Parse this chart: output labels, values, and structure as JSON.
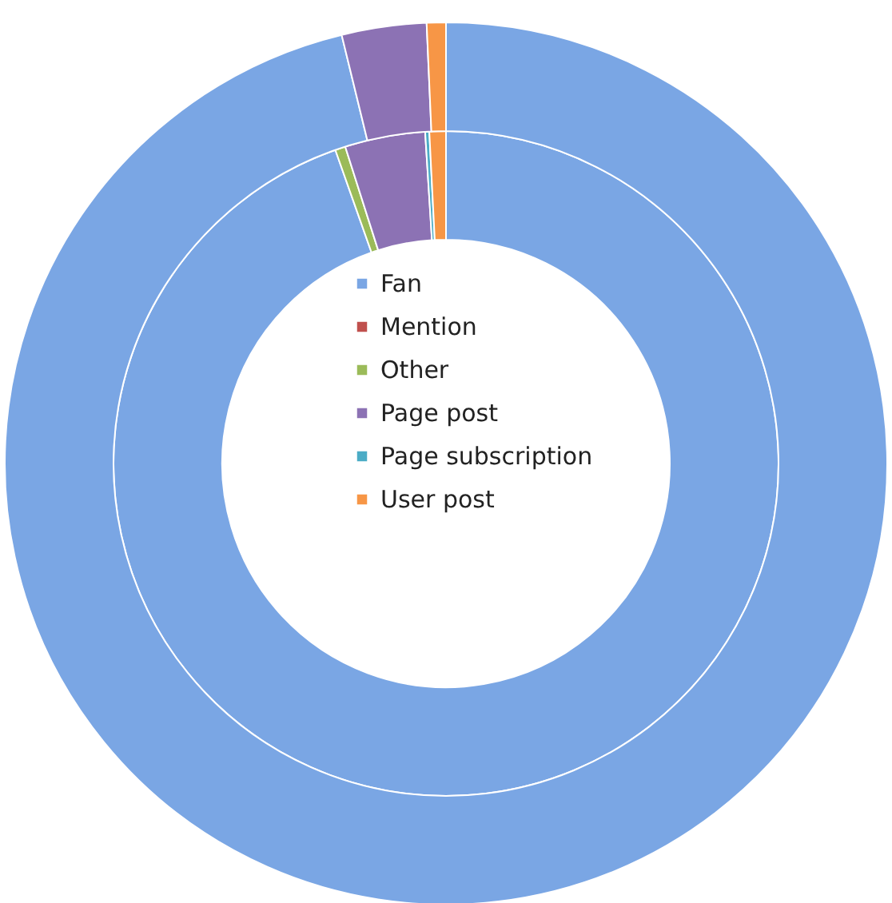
{
  "chart_data": {
    "type": "donut",
    "categories": [
      "Fan",
      "Mention",
      "Other",
      "Page post",
      "Page subscription",
      "User post"
    ],
    "colors": [
      "#7aa6e4",
      "#c0504d",
      "#9bbb59",
      "#8c72b4",
      "#4bacc6",
      "#f79646"
    ],
    "series": [
      {
        "values": [
          94.6,
          0,
          0.5,
          3.9,
          0.2,
          0.8
        ]
      },
      {
        "values": [
          96.2,
          0,
          0,
          3.1,
          0,
          0.7
        ]
      }
    ],
    "legend": "center"
  }
}
